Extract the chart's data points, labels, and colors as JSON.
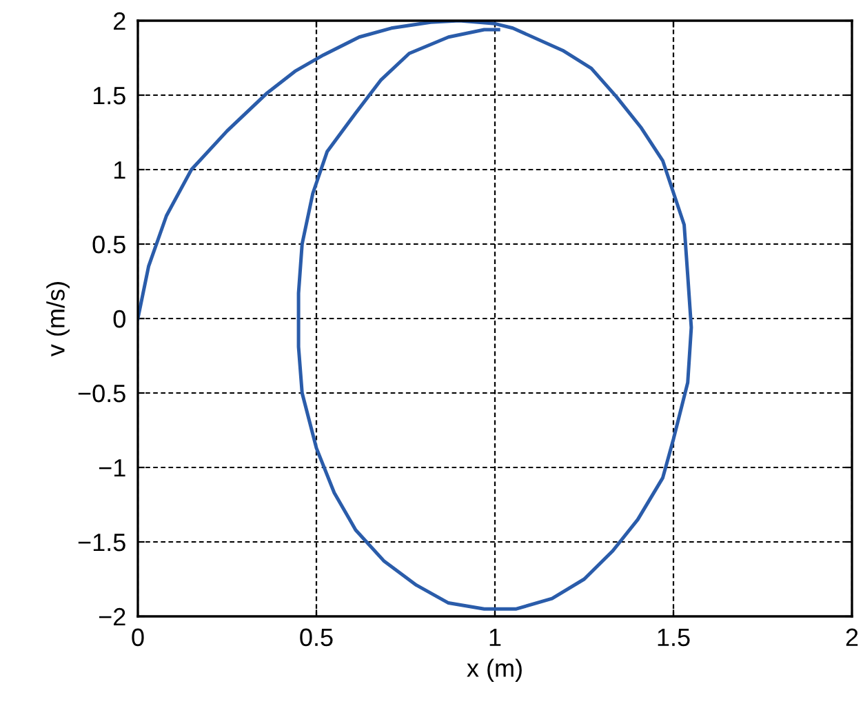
{
  "chart_data": {
    "type": "line",
    "xlabel": "x (m)",
    "ylabel": "v (m/s)",
    "xlim": [
      0,
      2
    ],
    "ylim": [
      -2,
      2
    ],
    "xticks": [
      0,
      0.5,
      1,
      1.5,
      2
    ],
    "yticks": [
      {
        "value": -2,
        "label": "−2"
      },
      {
        "value": -1.5,
        "label": "−1.5"
      },
      {
        "value": -1,
        "label": "−1"
      },
      {
        "value": -0.5,
        "label": "−0.5"
      },
      0,
      0.5,
      1,
      1.5,
      2
    ],
    "grid": true,
    "marker": "none",
    "line_style": "solid",
    "series": [
      {
        "color": "#2a5caa",
        "x": [
          0,
          0.03,
          0.08,
          0.15,
          0.25,
          0.36,
          0.44,
          0.52,
          0.62,
          0.71,
          0.82,
          0.9,
          1.0,
          1.05,
          1.19,
          1.27,
          1.34,
          1.41,
          1.47,
          1.53,
          1.54,
          1.55,
          1.54,
          1.5,
          1.47,
          1.4,
          1.33,
          1.25,
          1.16,
          1.06,
          0.97,
          0.87,
          0.78,
          0.69,
          0.61,
          0.55,
          0.5,
          0.46,
          0.45,
          0.45,
          0.45,
          0.46,
          0.49,
          0.53,
          0.61,
          0.68,
          0.76,
          0.87,
          0.97,
          1.01
        ],
        "values": [
          0,
          0.35,
          0.69,
          1.0,
          1.26,
          1.51,
          1.66,
          1.77,
          1.89,
          1.95,
          1.99,
          2.0,
          1.98,
          1.95,
          1.8,
          1.68,
          1.49,
          1.28,
          1.06,
          0.63,
          0.29,
          -0.06,
          -0.43,
          -0.81,
          -1.07,
          -1.35,
          -1.56,
          -1.75,
          -1.88,
          -1.95,
          -1.95,
          -1.91,
          -1.79,
          -1.63,
          -1.42,
          -1.17,
          -0.87,
          -0.5,
          -0.19,
          0.06,
          0.17,
          0.5,
          0.84,
          1.12,
          1.38,
          1.6,
          1.78,
          1.89,
          1.94,
          1.94
        ]
      }
    ]
  }
}
